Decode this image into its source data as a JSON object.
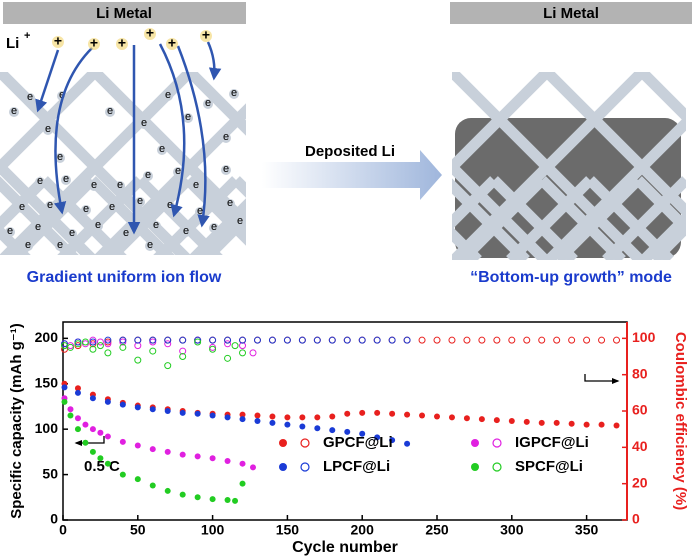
{
  "schematic": {
    "left_header": "Li Metal",
    "right_header": "Li Metal",
    "ion_label": "Li",
    "ion_charge": "+",
    "ion_symbol": "+",
    "electron_label": "e",
    "arrow_label": "Deposited Li",
    "left_caption": "Gradient uniform ion flow",
    "right_caption": "“Bottom-up growth” mode"
  },
  "chart_data": {
    "type": "scatter",
    "x_label": "Cycle number",
    "y_label": "Specific capacity (mAh g⁻¹)",
    "y2_label": "Coulombic efficiency (%)",
    "annotation": "0.5 C",
    "xlim": [
      0,
      377
    ],
    "xticks": [
      0,
      50,
      100,
      150,
      200,
      250,
      300,
      350
    ],
    "ylim": [
      0,
      218
    ],
    "yticks": [
      0,
      50,
      100,
      150,
      200
    ],
    "y2lim": [
      0,
      109
    ],
    "y2ticks": [
      0,
      20,
      40,
      60,
      80,
      100
    ],
    "y2_color": "#e8201e",
    "series": [
      {
        "name": "GPCF@Li",
        "color": "#e8201e",
        "x": [
          1,
          10,
          20,
          30,
          40,
          50,
          60,
          70,
          80,
          90,
          100,
          110,
          120,
          130,
          140,
          150,
          160,
          170,
          180,
          190,
          200,
          210,
          220,
          230,
          240,
          250,
          260,
          270,
          280,
          290,
          300,
          310,
          320,
          330,
          340,
          350,
          360,
          370
        ],
        "values": [
          150,
          145,
          138,
          133,
          129,
          126,
          124,
          122,
          120,
          118,
          117,
          116,
          116,
          115,
          114,
          113,
          113,
          113,
          114,
          117,
          118,
          118,
          117,
          116,
          115,
          114,
          113,
          112,
          111,
          110,
          109,
          108,
          107,
          107,
          106,
          105,
          105,
          104
        ],
        "efficiency": [
          94,
          96,
          97,
          98,
          99,
          99,
          99,
          99,
          99,
          99,
          99,
          99,
          99,
          99,
          99,
          99,
          99,
          99,
          99,
          99,
          99,
          99,
          99,
          99,
          99,
          99,
          99,
          99,
          99,
          99,
          99,
          99,
          99,
          99,
          99,
          99,
          99,
          99
        ]
      },
      {
        "name": "IGPCF@Li",
        "color": "#e020e0",
        "x": [
          1,
          5,
          10,
          15,
          20,
          25,
          30,
          40,
          50,
          60,
          70,
          80,
          90,
          100,
          110,
          120,
          127
        ],
        "values": [
          134,
          122,
          112,
          105,
          100,
          96,
          92,
          86,
          82,
          78,
          75,
          72,
          70,
          68,
          65,
          62,
          58
        ],
        "efficiency": [
          97,
          96,
          98,
          97,
          99,
          98,
          97,
          98,
          96,
          98,
          97,
          93,
          99,
          95,
          97,
          96,
          92
        ]
      },
      {
        "name": "LPCF@Li",
        "color": "#1a3bd6",
        "x": [
          1,
          10,
          20,
          30,
          40,
          50,
          60,
          70,
          80,
          90,
          100,
          110,
          120,
          130,
          140,
          150,
          160,
          170,
          180,
          190,
          200,
          210,
          220,
          230
        ],
        "values": [
          146,
          140,
          134,
          130,
          127,
          124,
          122,
          120,
          118,
          117,
          115,
          113,
          111,
          109,
          107,
          105,
          103,
          101,
          99,
          97,
          95,
          91,
          88,
          84
        ],
        "efficiency": [
          97,
          98,
          98,
          99,
          99,
          99,
          99,
          99,
          99,
          99,
          99,
          99,
          99,
          99,
          99,
          99,
          99,
          99,
          99,
          99,
          99,
          99,
          99,
          99
        ]
      },
      {
        "name": "SPCF@Li",
        "color": "#22cc22",
        "x": [
          1,
          5,
          10,
          15,
          20,
          25,
          30,
          40,
          50,
          60,
          70,
          80,
          90,
          100,
          110,
          115,
          120
        ],
        "values": [
          130,
          115,
          100,
          85,
          75,
          68,
          62,
          50,
          45,
          38,
          32,
          28,
          25,
          23,
          22,
          21,
          40
        ],
        "efficiency": [
          96,
          95,
          97,
          98,
          94,
          96,
          92,
          95,
          88,
          93,
          85,
          90,
          98,
          94,
          89,
          96,
          92
        ]
      }
    ]
  }
}
